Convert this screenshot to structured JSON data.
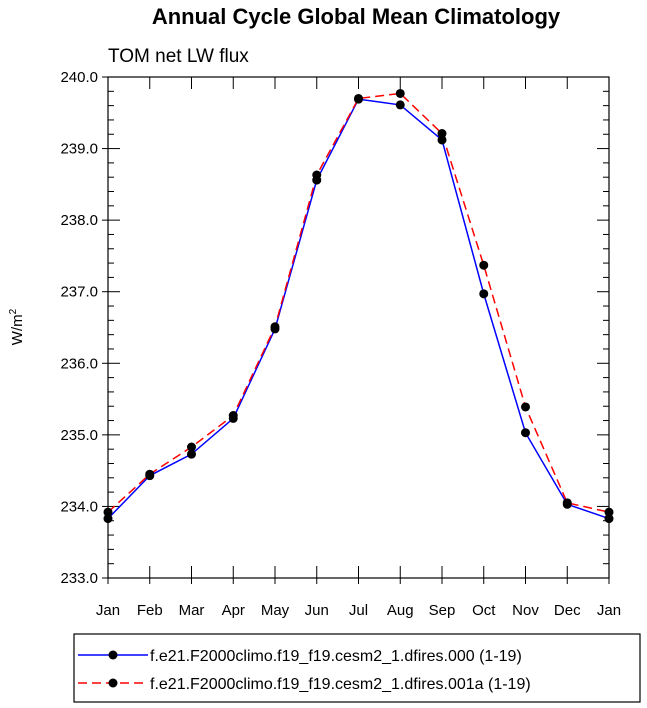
{
  "chart_data": {
    "type": "line",
    "title": "Annual Cycle Global Mean Climatology",
    "subtitle": "TOM net LW flux",
    "xlabel": "",
    "ylabel": "W/m",
    "ylabel_superscript": "2",
    "categories": [
      "Jan",
      "Feb",
      "Mar",
      "Apr",
      "May",
      "Jun",
      "Jul",
      "Aug",
      "Sep",
      "Oct",
      "Nov",
      "Dec",
      "Jan"
    ],
    "ylim": [
      233.0,
      240.0
    ],
    "yticks": [
      233.0,
      234.0,
      235.0,
      236.0,
      237.0,
      238.0,
      239.0,
      240.0
    ],
    "ytick_labels": [
      "233.0",
      "234.0",
      "235.0",
      "236.0",
      "237.0",
      "238.0",
      "239.0",
      "240.0"
    ],
    "series": [
      {
        "name": "f.e21.F2000climo.f19_f19.cesm2_1.dfires.000 (1-19)",
        "color": "#0000ff",
        "dash": "solid",
        "values": [
          233.83,
          234.43,
          234.73,
          235.23,
          236.48,
          238.56,
          239.69,
          239.61,
          239.12,
          236.97,
          235.03,
          234.03,
          233.83
        ]
      },
      {
        "name": "f.e21.F2000climo.f19_f19.cesm2_1.dfires.001a (1-19)",
        "color": "#ff0000",
        "dash": "dashed",
        "values": [
          233.92,
          234.45,
          234.83,
          235.27,
          236.51,
          238.63,
          239.7,
          239.77,
          239.21,
          237.37,
          235.39,
          234.05,
          233.92
        ]
      }
    ],
    "grid": false,
    "legend_position": "bottom"
  }
}
